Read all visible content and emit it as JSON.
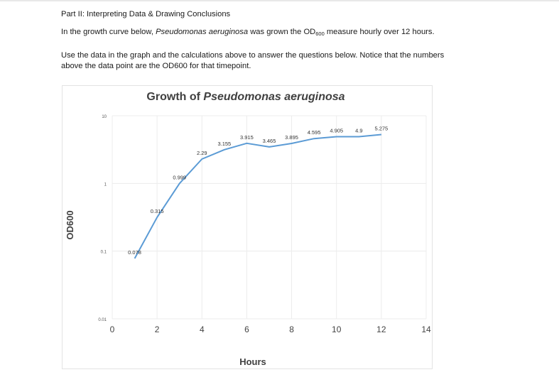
{
  "doc": {
    "heading": "Part II:  Interpreting Data & Drawing Conclusions",
    "intro": {
      "pre": "In the growth curve below, ",
      "organism": "Pseudomonas aeruginosa",
      "mid": " was grown the OD",
      "sub": "600",
      "post": " measure hourly over 12 hours."
    },
    "instructions_line1": "Use the data in the graph and the calculations above to answer the questions below.  Notice that the numbers",
    "instructions_line2": "above the data point are the OD600 for that timepoint."
  },
  "colors": {
    "line": "#5b9bd5",
    "title": "#404040",
    "grid": "#ececec"
  },
  "chart_data": {
    "type": "line",
    "title": "Growth of Pseudomonas aeruginosa",
    "title_prefix": "Growth of ",
    "title_italic": "Pseudomonas aeruginosa",
    "xlabel": "Hours",
    "ylabel": "OD600",
    "y_scale": "log",
    "xlim": [
      0,
      14
    ],
    "ylim": [
      0.01,
      10
    ],
    "x_ticks": [
      0,
      2,
      4,
      6,
      8,
      10,
      12,
      14
    ],
    "y_ticks": [
      0.01,
      0.1,
      1,
      10
    ],
    "y_tick_labels": [
      "0.01",
      "0.1",
      "1",
      "10"
    ],
    "grid": true,
    "series": [
      {
        "name": "OD600",
        "x": [
          1,
          2,
          3,
          4,
          5,
          6,
          7,
          8,
          9,
          10,
          11,
          12
        ],
        "y": [
          0.078,
          0.315,
          0.999,
          2.29,
          3.155,
          3.915,
          3.465,
          3.895,
          4.595,
          4.905,
          4.9,
          5.275
        ],
        "labels": [
          "0.078",
          "0.315",
          "0.999",
          "2.29",
          "3.155",
          "3.915",
          "3.465",
          "3.895",
          "4.595",
          "4.905",
          "4.9",
          "5.275"
        ]
      }
    ]
  }
}
